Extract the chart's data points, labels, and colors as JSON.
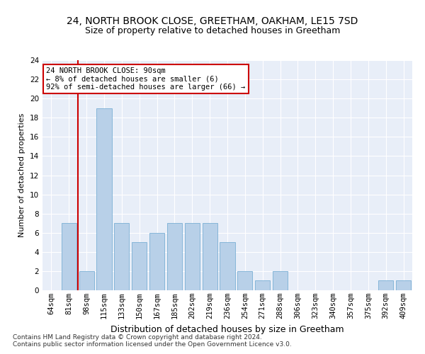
{
  "title1": "24, NORTH BROOK CLOSE, GREETHAM, OAKHAM, LE15 7SD",
  "title2": "Size of property relative to detached houses in Greetham",
  "xlabel": "Distribution of detached houses by size in Greetham",
  "ylabel": "Number of detached properties",
  "categories": [
    "64sqm",
    "81sqm",
    "98sqm",
    "115sqm",
    "133sqm",
    "150sqm",
    "167sqm",
    "185sqm",
    "202sqm",
    "219sqm",
    "236sqm",
    "254sqm",
    "271sqm",
    "288sqm",
    "306sqm",
    "323sqm",
    "340sqm",
    "357sqm",
    "375sqm",
    "392sqm",
    "409sqm"
  ],
  "values": [
    0,
    7,
    2,
    19,
    7,
    5,
    6,
    7,
    7,
    7,
    5,
    2,
    1,
    2,
    0,
    0,
    0,
    0,
    0,
    1,
    1
  ],
  "bar_color": "#b8d0e8",
  "bar_edge_color": "#7aafd4",
  "vline_x": 1.5,
  "vline_color": "#cc0000",
  "annotation_line1": "24 NORTH BROOK CLOSE: 90sqm",
  "annotation_line2": "← 8% of detached houses are smaller (6)",
  "annotation_line3": "92% of semi-detached houses are larger (66) →",
  "annotation_box_color": "#ffffff",
  "annotation_box_edge": "#cc0000",
  "ylim": [
    0,
    24
  ],
  "yticks": [
    0,
    2,
    4,
    6,
    8,
    10,
    12,
    14,
    16,
    18,
    20,
    22,
    24
  ],
  "bg_color": "#e8eef8",
  "footer1": "Contains HM Land Registry data © Crown copyright and database right 2024.",
  "footer2": "Contains public sector information licensed under the Open Government Licence v3.0.",
  "title1_fontsize": 10,
  "title2_fontsize": 9,
  "xlabel_fontsize": 9,
  "ylabel_fontsize": 8,
  "tick_fontsize": 7.5,
  "annotation_fontsize": 7.5,
  "footer_fontsize": 6.5
}
